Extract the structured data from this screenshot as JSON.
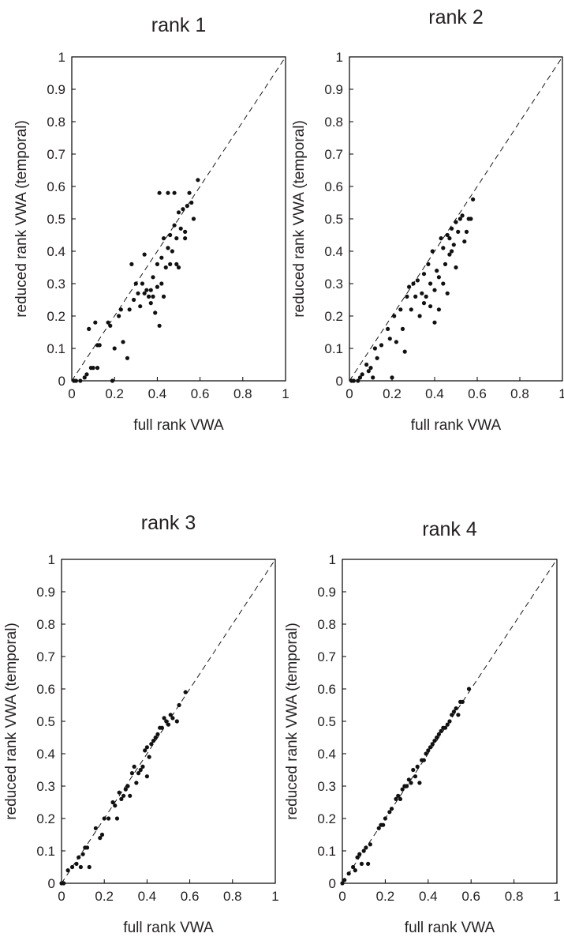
{
  "chart_data": [
    {
      "type": "scatter",
      "title": "rank 1",
      "xlabel": "full rank VWA",
      "ylabel": "reduced rank VWA (temporal)",
      "xlim": [
        0,
        1
      ],
      "ylim": [
        0,
        1
      ],
      "xticks": [
        "0",
        "0.2",
        "0.4",
        "0.6",
        "0.8",
        "1"
      ],
      "yticks": [
        "0",
        "0.1",
        "0.2",
        "0.3",
        "0.4",
        "0.5",
        "0.6",
        "0.7",
        "0.8",
        "0.9",
        "1"
      ],
      "reference_line": "y = x (dashed)",
      "points": [
        [
          0.01,
          0.0
        ],
        [
          0.02,
          0.0
        ],
        [
          0.04,
          0.0
        ],
        [
          0.06,
          0.01
        ],
        [
          0.07,
          0.02
        ],
        [
          0.08,
          0.16
        ],
        [
          0.09,
          0.04
        ],
        [
          0.1,
          0.04
        ],
        [
          0.11,
          0.18
        ],
        [
          0.12,
          0.11
        ],
        [
          0.12,
          0.04
        ],
        [
          0.13,
          0.11
        ],
        [
          0.17,
          0.18
        ],
        [
          0.18,
          0.17
        ],
        [
          0.19,
          0.0
        ],
        [
          0.2,
          0.1
        ],
        [
          0.22,
          0.2
        ],
        [
          0.23,
          0.22
        ],
        [
          0.24,
          0.12
        ],
        [
          0.26,
          0.07
        ],
        [
          0.27,
          0.22
        ],
        [
          0.28,
          0.36
        ],
        [
          0.29,
          0.25
        ],
        [
          0.3,
          0.3
        ],
        [
          0.31,
          0.27
        ],
        [
          0.32,
          0.23
        ],
        [
          0.33,
          0.3
        ],
        [
          0.34,
          0.39
        ],
        [
          0.34,
          0.27
        ],
        [
          0.35,
          0.28
        ],
        [
          0.36,
          0.26
        ],
        [
          0.37,
          0.24
        ],
        [
          0.37,
          0.28
        ],
        [
          0.38,
          0.32
        ],
        [
          0.38,
          0.26
        ],
        [
          0.39,
          0.21
        ],
        [
          0.4,
          0.36
        ],
        [
          0.4,
          0.29
        ],
        [
          0.41,
          0.17
        ],
        [
          0.41,
          0.58
        ],
        [
          0.42,
          0.38
        ],
        [
          0.42,
          0.3
        ],
        [
          0.43,
          0.44
        ],
        [
          0.43,
          0.26
        ],
        [
          0.44,
          0.35
        ],
        [
          0.45,
          0.41
        ],
        [
          0.45,
          0.58
        ],
        [
          0.46,
          0.36
        ],
        [
          0.46,
          0.45
        ],
        [
          0.47,
          0.4
        ],
        [
          0.48,
          0.48
        ],
        [
          0.48,
          0.58
        ],
        [
          0.49,
          0.44
        ],
        [
          0.49,
          0.36
        ],
        [
          0.5,
          0.52
        ],
        [
          0.5,
          0.35
        ],
        [
          0.51,
          0.47
        ],
        [
          0.52,
          0.53
        ],
        [
          0.53,
          0.46
        ],
        [
          0.53,
          0.44
        ],
        [
          0.54,
          0.54
        ],
        [
          0.55,
          0.58
        ],
        [
          0.56,
          0.55
        ],
        [
          0.57,
          0.5
        ],
        [
          0.59,
          0.62
        ]
      ]
    },
    {
      "type": "scatter",
      "title": "rank 2",
      "xlabel": "full rank VWA",
      "ylabel": "reduced rank VWA (temporal)",
      "xlim": [
        0,
        1
      ],
      "ylim": [
        0,
        1
      ],
      "xticks": [
        "0",
        "0.2",
        "0.4",
        "0.6",
        "0.8",
        "1"
      ],
      "yticks": [
        "0",
        "0.1",
        "0.2",
        "0.3",
        "0.4",
        "0.5",
        "0.6",
        "0.7",
        "0.8",
        "0.9",
        "1"
      ],
      "reference_line": "y = x (dashed)",
      "points": [
        [
          0.01,
          0.0
        ],
        [
          0.02,
          0.0
        ],
        [
          0.04,
          0.0
        ],
        [
          0.05,
          0.01
        ],
        [
          0.06,
          0.02
        ],
        [
          0.08,
          0.05
        ],
        [
          0.09,
          0.03
        ],
        [
          0.1,
          0.04
        ],
        [
          0.11,
          0.01
        ],
        [
          0.12,
          0.1
        ],
        [
          0.13,
          0.07
        ],
        [
          0.15,
          0.11
        ],
        [
          0.18,
          0.16
        ],
        [
          0.19,
          0.13
        ],
        [
          0.2,
          0.01
        ],
        [
          0.21,
          0.2
        ],
        [
          0.22,
          0.12
        ],
        [
          0.24,
          0.22
        ],
        [
          0.25,
          0.16
        ],
        [
          0.26,
          0.09
        ],
        [
          0.27,
          0.26
        ],
        [
          0.28,
          0.29
        ],
        [
          0.29,
          0.22
        ],
        [
          0.3,
          0.3
        ],
        [
          0.31,
          0.26
        ],
        [
          0.32,
          0.31
        ],
        [
          0.33,
          0.2
        ],
        [
          0.34,
          0.27
        ],
        [
          0.35,
          0.24
        ],
        [
          0.35,
          0.33
        ],
        [
          0.36,
          0.26
        ],
        [
          0.37,
          0.36
        ],
        [
          0.38,
          0.23
        ],
        [
          0.38,
          0.3
        ],
        [
          0.39,
          0.4
        ],
        [
          0.4,
          0.28
        ],
        [
          0.4,
          0.18
        ],
        [
          0.41,
          0.34
        ],
        [
          0.42,
          0.22
        ],
        [
          0.42,
          0.32
        ],
        [
          0.43,
          0.44
        ],
        [
          0.44,
          0.3
        ],
        [
          0.44,
          0.41
        ],
        [
          0.45,
          0.36
        ],
        [
          0.46,
          0.45
        ],
        [
          0.46,
          0.27
        ],
        [
          0.47,
          0.39
        ],
        [
          0.47,
          0.44
        ],
        [
          0.48,
          0.47
        ],
        [
          0.48,
          0.4
        ],
        [
          0.49,
          0.42
        ],
        [
          0.5,
          0.49
        ],
        [
          0.5,
          0.35
        ],
        [
          0.51,
          0.46
        ],
        [
          0.52,
          0.5
        ],
        [
          0.53,
          0.51
        ],
        [
          0.54,
          0.43
        ],
        [
          0.55,
          0.46
        ],
        [
          0.56,
          0.5
        ],
        [
          0.57,
          0.5
        ],
        [
          0.58,
          0.56
        ]
      ]
    },
    {
      "type": "scatter",
      "title": "rank 3",
      "xlabel": "full rank VWA",
      "ylabel": "reduced rank VWA (temporal)",
      "xlim": [
        0,
        1
      ],
      "ylim": [
        0,
        1
      ],
      "xticks": [
        "0",
        "0.2",
        "0.4",
        "0.6",
        "0.8",
        "1"
      ],
      "yticks": [
        "0",
        "0.1",
        "0.2",
        "0.3",
        "0.4",
        "0.5",
        "0.6",
        "0.7",
        "0.8",
        "0.9",
        "1"
      ],
      "reference_line": "y = x (dashed)",
      "points": [
        [
          0.0,
          0.0
        ],
        [
          0.01,
          0.0
        ],
        [
          0.03,
          0.04
        ],
        [
          0.05,
          0.05
        ],
        [
          0.07,
          0.06
        ],
        [
          0.08,
          0.08
        ],
        [
          0.09,
          0.05
        ],
        [
          0.1,
          0.09
        ],
        [
          0.11,
          0.11
        ],
        [
          0.12,
          0.11
        ],
        [
          0.13,
          0.05
        ],
        [
          0.16,
          0.17
        ],
        [
          0.18,
          0.14
        ],
        [
          0.19,
          0.15
        ],
        [
          0.2,
          0.2
        ],
        [
          0.22,
          0.2
        ],
        [
          0.24,
          0.25
        ],
        [
          0.25,
          0.24
        ],
        [
          0.26,
          0.2
        ],
        [
          0.27,
          0.28
        ],
        [
          0.28,
          0.26
        ],
        [
          0.29,
          0.27
        ],
        [
          0.3,
          0.29
        ],
        [
          0.31,
          0.3
        ],
        [
          0.32,
          0.27
        ],
        [
          0.33,
          0.34
        ],
        [
          0.34,
          0.36
        ],
        [
          0.35,
          0.31
        ],
        [
          0.36,
          0.34
        ],
        [
          0.37,
          0.35
        ],
        [
          0.38,
          0.36
        ],
        [
          0.39,
          0.41
        ],
        [
          0.4,
          0.42
        ],
        [
          0.4,
          0.33
        ],
        [
          0.41,
          0.39
        ],
        [
          0.42,
          0.43
        ],
        [
          0.43,
          0.44
        ],
        [
          0.44,
          0.45
        ],
        [
          0.45,
          0.46
        ],
        [
          0.46,
          0.48
        ],
        [
          0.47,
          0.48
        ],
        [
          0.48,
          0.51
        ],
        [
          0.49,
          0.5
        ],
        [
          0.5,
          0.49
        ],
        [
          0.51,
          0.52
        ],
        [
          0.52,
          0.51
        ],
        [
          0.54,
          0.5
        ],
        [
          0.55,
          0.55
        ],
        [
          0.58,
          0.59
        ]
      ]
    },
    {
      "type": "scatter",
      "title": "rank 4",
      "xlabel": "full rank VWA",
      "ylabel": "reduced rank VWA (temporal)",
      "xlim": [
        0,
        1
      ],
      "ylim": [
        0,
        1
      ],
      "xticks": [
        "0",
        "0.2",
        "0.4",
        "0.6",
        "0.8",
        "1"
      ],
      "yticks": [
        "0",
        "0.1",
        "0.2",
        "0.3",
        "0.4",
        "0.5",
        "0.6",
        "0.7",
        "0.8",
        "0.9",
        "1"
      ],
      "reference_line": "y = x (dashed)",
      "points": [
        [
          0.0,
          0.0
        ],
        [
          0.01,
          0.01
        ],
        [
          0.03,
          0.03
        ],
        [
          0.05,
          0.05
        ],
        [
          0.06,
          0.04
        ],
        [
          0.07,
          0.08
        ],
        [
          0.08,
          0.09
        ],
        [
          0.09,
          0.06
        ],
        [
          0.1,
          0.1
        ],
        [
          0.11,
          0.11
        ],
        [
          0.12,
          0.06
        ],
        [
          0.13,
          0.12
        ],
        [
          0.17,
          0.17
        ],
        [
          0.18,
          0.18
        ],
        [
          0.19,
          0.18
        ],
        [
          0.2,
          0.2
        ],
        [
          0.22,
          0.22
        ],
        [
          0.23,
          0.23
        ],
        [
          0.25,
          0.26
        ],
        [
          0.26,
          0.27
        ],
        [
          0.27,
          0.26
        ],
        [
          0.28,
          0.29
        ],
        [
          0.29,
          0.3
        ],
        [
          0.3,
          0.3
        ],
        [
          0.31,
          0.32
        ],
        [
          0.32,
          0.31
        ],
        [
          0.33,
          0.35
        ],
        [
          0.34,
          0.33
        ],
        [
          0.35,
          0.36
        ],
        [
          0.36,
          0.31
        ],
        [
          0.37,
          0.38
        ],
        [
          0.38,
          0.38
        ],
        [
          0.39,
          0.4
        ],
        [
          0.4,
          0.41
        ],
        [
          0.41,
          0.42
        ],
        [
          0.42,
          0.43
        ],
        [
          0.43,
          0.44
        ],
        [
          0.44,
          0.45
        ],
        [
          0.45,
          0.46
        ],
        [
          0.46,
          0.47
        ],
        [
          0.47,
          0.48
        ],
        [
          0.48,
          0.48
        ],
        [
          0.49,
          0.49
        ],
        [
          0.5,
          0.5
        ],
        [
          0.51,
          0.52
        ],
        [
          0.52,
          0.53
        ],
        [
          0.53,
          0.54
        ],
        [
          0.54,
          0.52
        ],
        [
          0.55,
          0.56
        ],
        [
          0.56,
          0.56
        ],
        [
          0.59,
          0.6
        ]
      ]
    }
  ]
}
